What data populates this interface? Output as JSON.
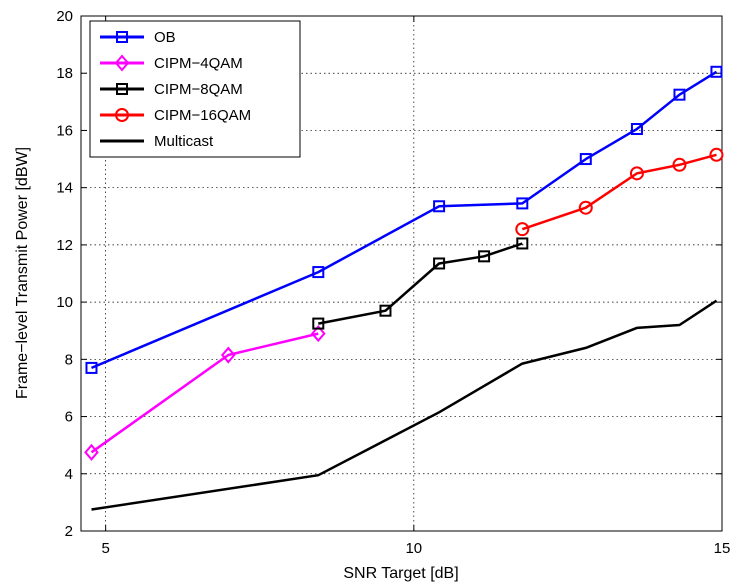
{
  "chart_data": {
    "type": "line",
    "title": "",
    "xlabel": "SNR Target [dB]",
    "ylabel": "Frame−level Transmit Power [dBW]",
    "xlim": [
      4.6,
      15
    ],
    "ylim": [
      2,
      20
    ],
    "xticks": [
      5,
      10,
      15
    ],
    "yticks": [
      2,
      4,
      6,
      8,
      10,
      12,
      14,
      16,
      18,
      20
    ],
    "grid": true,
    "legend_position": "top-left",
    "series": [
      {
        "name": "OB",
        "color": "#0000ff",
        "marker": "square",
        "x": [
          4.77,
          8.45,
          10.41,
          11.76,
          12.79,
          13.62,
          14.31,
          14.91
        ],
        "y": [
          7.7,
          11.05,
          13.35,
          13.45,
          15.0,
          16.05,
          17.25,
          18.05
        ]
      },
      {
        "name": "CIPM−4QAM",
        "color": "#ff00ff",
        "marker": "diamond",
        "x": [
          4.77,
          6.99,
          8.45
        ],
        "y": [
          4.75,
          8.15,
          8.9
        ]
      },
      {
        "name": "CIPM−8QAM",
        "color": "#000000",
        "marker": "square",
        "x": [
          8.45,
          9.54,
          10.41,
          11.14,
          11.76
        ],
        "y": [
          9.25,
          9.7,
          11.35,
          11.6,
          12.05
        ]
      },
      {
        "name": "CIPM−16QAM",
        "color": "#ff0000",
        "marker": "circle",
        "x": [
          11.76,
          12.79,
          13.62,
          14.31,
          14.91
        ],
        "y": [
          12.55,
          13.3,
          14.5,
          14.8,
          15.15
        ]
      },
      {
        "name": "Multicast",
        "color": "#000000",
        "marker": "none",
        "x": [
          4.77,
          8.45,
          10.41,
          11.76,
          12.79,
          13.62,
          14.31,
          14.91
        ],
        "y": [
          2.75,
          3.95,
          6.15,
          7.85,
          8.4,
          9.1,
          9.2,
          10.05
        ]
      }
    ]
  }
}
